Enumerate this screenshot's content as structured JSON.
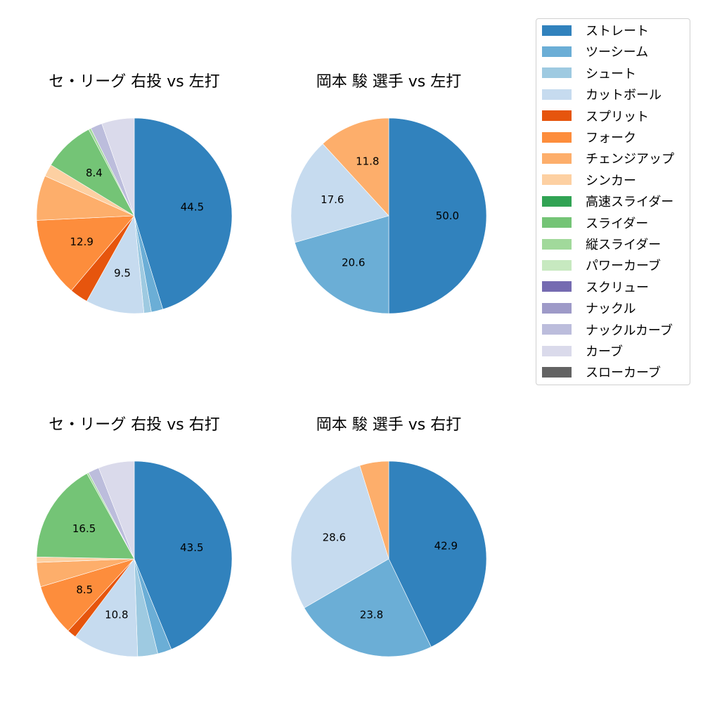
{
  "legend": {
    "items": [
      {
        "label": "ストレート",
        "color": "#3182bd"
      },
      {
        "label": "ツーシーム",
        "color": "#6baed6"
      },
      {
        "label": "シュート",
        "color": "#9ecae1"
      },
      {
        "label": "カットボール",
        "color": "#c6dbef"
      },
      {
        "label": "スプリット",
        "color": "#e6550d"
      },
      {
        "label": "フォーク",
        "color": "#fd8d3c"
      },
      {
        "label": "チェンジアップ",
        "color": "#fdae6b"
      },
      {
        "label": "シンカー",
        "color": "#fdd0a2"
      },
      {
        "label": "高速スライダー",
        "color": "#31a354"
      },
      {
        "label": "スライダー",
        "color": "#74c476"
      },
      {
        "label": "縦スライダー",
        "color": "#a1d99b"
      },
      {
        "label": "パワーカーブ",
        "color": "#c7e9c0"
      },
      {
        "label": "スクリュー",
        "color": "#756bb1"
      },
      {
        "label": "ナックル",
        "color": "#9e9ac8"
      },
      {
        "label": "ナックルカーブ",
        "color": "#bcbddc"
      },
      {
        "label": "カーブ",
        "color": "#dadaeb"
      },
      {
        "label": "スローカーブ",
        "color": "#636363"
      }
    ]
  },
  "chart_data": [
    {
      "type": "pie",
      "title": "セ・リーグ 右投 vs 左打",
      "start_angle": 90,
      "direction": "clockwise",
      "label_threshold": 8,
      "slices": [
        {
          "name": "ストレート",
          "value": 44.5,
          "label": "44.5"
        },
        {
          "name": "ツーシーム",
          "value": 1.9
        },
        {
          "name": "シュート",
          "value": 1.2
        },
        {
          "name": "カットボール",
          "value": 9.5,
          "label": "9.5"
        },
        {
          "name": "スプリット",
          "value": 3.0
        },
        {
          "name": "フォーク",
          "value": 12.9,
          "label": "12.9"
        },
        {
          "name": "チェンジアップ",
          "value": 7.3
        },
        {
          "name": "シンカー",
          "value": 2.0
        },
        {
          "name": "スライダー",
          "value": 8.4,
          "label": "8.4"
        },
        {
          "name": "縦スライダー",
          "value": 0.4
        },
        {
          "name": "ナックルカーブ",
          "value": 1.9
        },
        {
          "name": "カーブ",
          "value": 5.3
        }
      ]
    },
    {
      "type": "pie",
      "title": "岡本 駿 選手 vs 左打",
      "start_angle": 90,
      "direction": "clockwise",
      "label_threshold": 8,
      "slices": [
        {
          "name": "ストレート",
          "value": 50.0,
          "label": "50.0"
        },
        {
          "name": "ツーシーム",
          "value": 20.6,
          "label": "20.6"
        },
        {
          "name": "カットボール",
          "value": 17.6,
          "label": "17.6"
        },
        {
          "name": "チェンジアップ",
          "value": 11.8,
          "label": "11.8"
        }
      ]
    },
    {
      "type": "pie",
      "title": "セ・リーグ 右投 vs 右打",
      "start_angle": 90,
      "direction": "clockwise",
      "label_threshold": 8,
      "slices": [
        {
          "name": "ストレート",
          "value": 43.5,
          "label": "43.5"
        },
        {
          "name": "ツーシーム",
          "value": 2.3
        },
        {
          "name": "シュート",
          "value": 3.3
        },
        {
          "name": "カットボール",
          "value": 10.8,
          "label": "10.8"
        },
        {
          "name": "スプリット",
          "value": 1.5
        },
        {
          "name": "フォーク",
          "value": 8.5,
          "label": "8.5"
        },
        {
          "name": "チェンジアップ",
          "value": 4.0
        },
        {
          "name": "シンカー",
          "value": 0.9
        },
        {
          "name": "スライダー",
          "value": 16.5,
          "label": "16.5"
        },
        {
          "name": "縦スライダー",
          "value": 0.3
        },
        {
          "name": "ナックルカーブ",
          "value": 1.8
        },
        {
          "name": "カーブ",
          "value": 5.9
        }
      ]
    },
    {
      "type": "pie",
      "title": "岡本 駿 選手 vs 右打",
      "start_angle": 90,
      "direction": "clockwise",
      "label_threshold": 8,
      "slices": [
        {
          "name": "ストレート",
          "value": 42.9,
          "label": "42.9"
        },
        {
          "name": "ツーシーム",
          "value": 23.8,
          "label": "23.8"
        },
        {
          "name": "カットボール",
          "value": 28.6,
          "label": "28.6"
        },
        {
          "name": "チェンジアップ",
          "value": 4.8
        }
      ]
    }
  ]
}
